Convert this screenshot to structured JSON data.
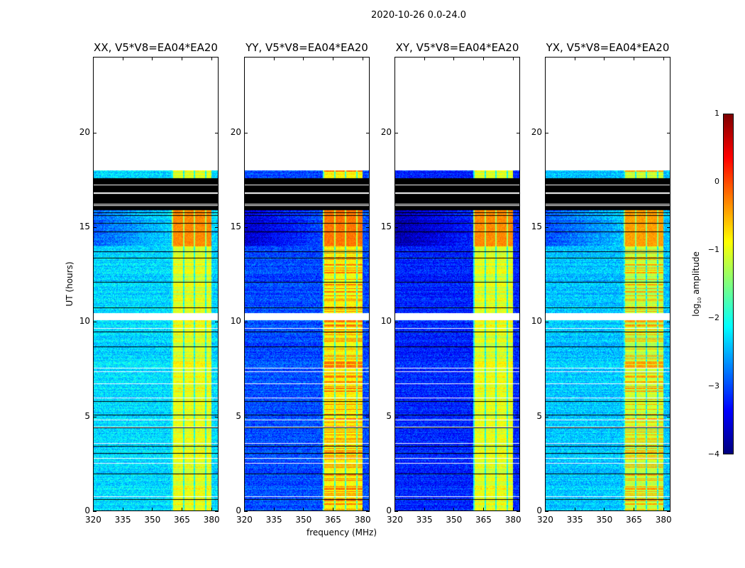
{
  "figure": {
    "suptitle": "2020-10-26 0.0-24.0",
    "xlabel": "frequency (MHz)",
    "ylabel": "UT (hours)"
  },
  "chart_data": {
    "type": "heatmap",
    "title": "2020-10-26 0.0-24.0",
    "xlabel": "frequency (MHz)",
    "ylabel": "UT (hours)",
    "xlim": [
      320,
      383.7
    ],
    "ylim": [
      0,
      24
    ],
    "xticks": [
      320,
      335,
      350,
      365,
      380
    ],
    "yticks": [
      0,
      5,
      10,
      15,
      20
    ],
    "data_time_range_hours": [
      0,
      18
    ],
    "flagged_block_hours": [
      15.9,
      17.6
    ],
    "gap_hours": [
      10.1,
      10.45
    ],
    "bright_band_mhz": [
      360,
      380
    ],
    "panels": [
      {
        "title": "XX, V5*V8=EA04*EA20",
        "background_log_amp": -2.3,
        "band_log_amp": -1.0,
        "band_peak_log_amp": -0.3
      },
      {
        "title": "YY, V5*V8=EA04*EA20",
        "background_log_amp": -3.0,
        "band_log_amp": -0.8,
        "band_peak_log_amp": -0.2
      },
      {
        "title": "XY, V5*V8=EA04*EA20",
        "background_log_amp": -3.2,
        "band_log_amp": -1.0,
        "band_peak_log_amp": -0.3
      },
      {
        "title": "YX, V5*V8=EA04*EA20",
        "background_log_amp": -2.4,
        "band_log_amp": -1.1,
        "band_peak_log_amp": -0.4
      }
    ],
    "colorbar": {
      "label": "log10 amplitude",
      "label_main": "log",
      "label_sub": "10",
      "label_rest": " amplitude",
      "range": [
        -4,
        1
      ],
      "ticks": [
        -4,
        -3,
        -2,
        -1,
        0,
        1
      ],
      "colormap": "jet"
    }
  }
}
